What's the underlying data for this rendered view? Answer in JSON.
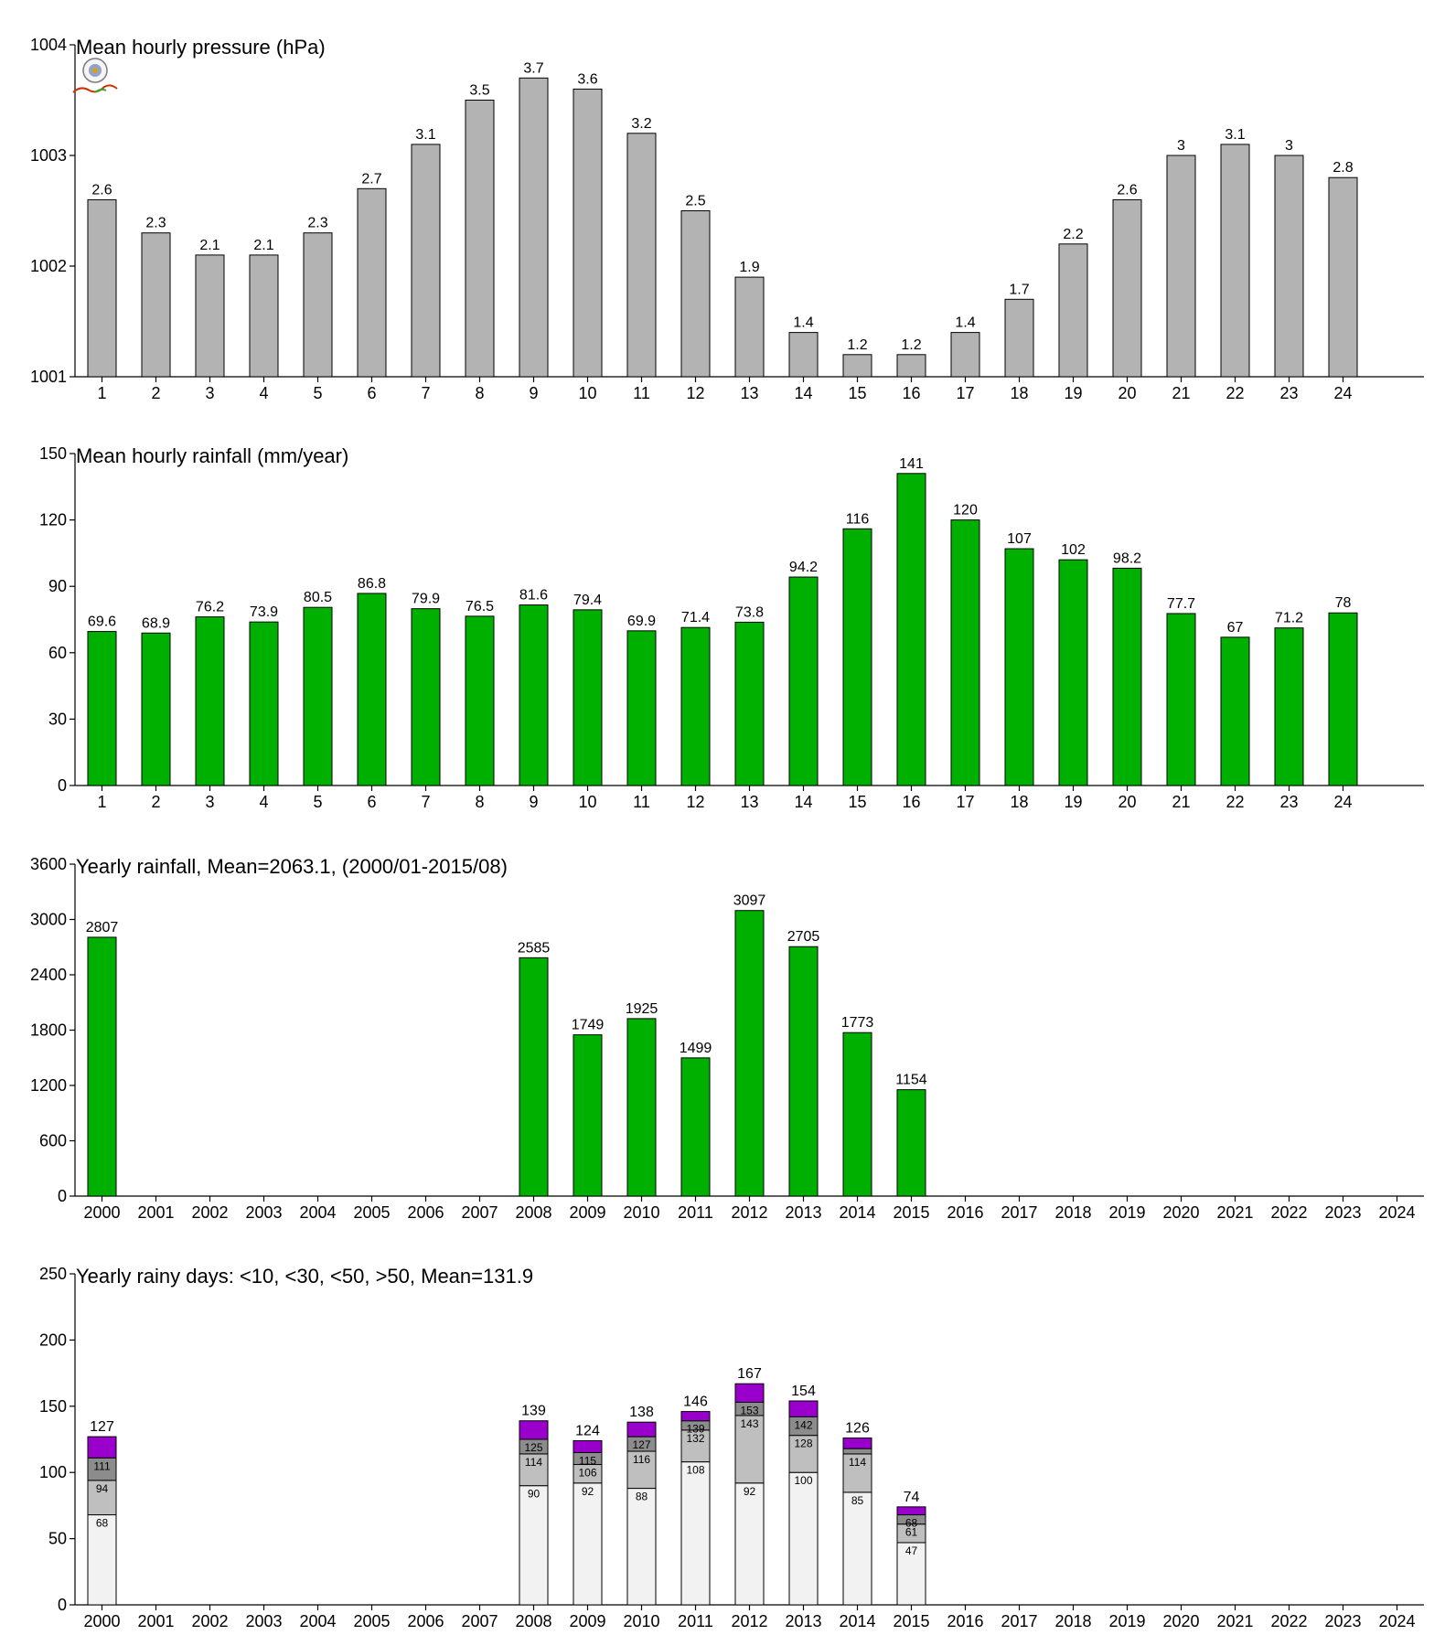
{
  "chart_data": [
    {
      "id": "pressure",
      "type": "bar",
      "title": "Mean hourly pressure (hPa)",
      "categories": [
        "1",
        "2",
        "3",
        "4",
        "5",
        "6",
        "7",
        "8",
        "9",
        "10",
        "11",
        "12",
        "13",
        "14",
        "15",
        "16",
        "17",
        "18",
        "19",
        "20",
        "21",
        "22",
        "23",
        "24"
      ],
      "values": [
        1002.6,
        1002.3,
        1002.1,
        1002.1,
        1002.3,
        1002.7,
        1003.1,
        1003.5,
        1003.7,
        1003.6,
        1003.2,
        1002.5,
        1001.9,
        1001.4,
        1001.2,
        1001.2,
        1001.4,
        1001.7,
        1002.2,
        1002.6,
        1003.0,
        1003.1,
        1003.0,
        1002.8
      ],
      "labels": [
        "2.6",
        "2.3",
        "2.1",
        "2.1",
        "2.3",
        "2.7",
        "3.1",
        "3.5",
        "3.7",
        "3.6",
        "3.2",
        "2.5",
        "1.9",
        "1.4",
        "1.2",
        "1.2",
        "1.4",
        "1.7",
        "2.2",
        "2.6",
        "3",
        "3.1",
        "3",
        "2.8"
      ],
      "ylim": [
        1001,
        1004
      ],
      "yticks": [
        1001,
        1002,
        1003,
        1004
      ],
      "color": "#b3b3b3",
      "grid": false
    },
    {
      "id": "hourly_rain",
      "type": "bar",
      "title": "Mean hourly rainfall (mm/year)",
      "categories": [
        "1",
        "2",
        "3",
        "4",
        "5",
        "6",
        "7",
        "8",
        "9",
        "10",
        "11",
        "12",
        "13",
        "14",
        "15",
        "16",
        "17",
        "18",
        "19",
        "20",
        "21",
        "22",
        "23",
        "24"
      ],
      "values": [
        69.6,
        68.9,
        76.2,
        73.9,
        80.5,
        86.8,
        79.9,
        76.5,
        81.6,
        79.4,
        69.9,
        71.4,
        73.8,
        94.2,
        116,
        141,
        120,
        107,
        102,
        98.2,
        77.7,
        67,
        71.2,
        78
      ],
      "labels": [
        "69.6",
        "68.9",
        "76.2",
        "73.9",
        "80.5",
        "86.8",
        "79.9",
        "76.5",
        "81.6",
        "79.4",
        "69.9",
        "71.4",
        "73.8",
        "94.2",
        "116",
        "141",
        "120",
        "107",
        "102",
        "98.2",
        "77.7",
        "67",
        "71.2",
        "78"
      ],
      "ylim": [
        0,
        150
      ],
      "yticks": [
        0,
        30,
        60,
        90,
        120,
        150
      ],
      "color": "#00b000",
      "grid": false
    },
    {
      "id": "yearly_rain",
      "type": "bar",
      "title": "Yearly rainfall, Mean=2063.1, (2000/01-2015/08)",
      "categories": [
        "2000",
        "2001",
        "2002",
        "2003",
        "2004",
        "2005",
        "2006",
        "2007",
        "2008",
        "2009",
        "2010",
        "2011",
        "2012",
        "2013",
        "2014",
        "2015",
        "2016",
        "2017",
        "2018",
        "2019",
        "2020",
        "2021",
        "2022",
        "2023",
        "2024"
      ],
      "values": [
        2807,
        null,
        null,
        null,
        null,
        null,
        null,
        null,
        2585,
        1749,
        1925,
        1499,
        3097,
        2705,
        1773,
        1154,
        null,
        null,
        null,
        null,
        null,
        null,
        null,
        null,
        null
      ],
      "labels": [
        "2807",
        "",
        "",
        "",
        "",
        "",
        "",
        "",
        "2585",
        "1749",
        "1925",
        "1499",
        "3097",
        "2705",
        "1773",
        "1154",
        "",
        "",
        "",
        "",
        "",
        "",
        "",
        "",
        ""
      ],
      "ylim": [
        0,
        3600
      ],
      "yticks": [
        0,
        600,
        1200,
        1800,
        2400,
        3000,
        3600
      ],
      "color": "#00b000",
      "grid": false
    },
    {
      "id": "rainy_days",
      "type": "bar",
      "stacked": true,
      "title": "Yearly rainy days: <10, <30, <50, >50, Mean=131.9",
      "categories": [
        "2000",
        "2001",
        "2002",
        "2003",
        "2004",
        "2005",
        "2006",
        "2007",
        "2008",
        "2009",
        "2010",
        "2011",
        "2012",
        "2013",
        "2014",
        "2015",
        "2016",
        "2017",
        "2018",
        "2019",
        "2020",
        "2021",
        "2022",
        "2023",
        "2024"
      ],
      "cumulative": [
        [
          68,
          94,
          111,
          127
        ],
        null,
        null,
        null,
        null,
        null,
        null,
        null,
        [
          90,
          114,
          125,
          139
        ],
        [
          92,
          106,
          115,
          124
        ],
        [
          88,
          116,
          127,
          138
        ],
        [
          108,
          132,
          139,
          146
        ],
        [
          92,
          143,
          153,
          167
        ],
        [
          100,
          128,
          142,
          154
        ],
        [
          85,
          114,
          118,
          126
        ],
        [
          47,
          61,
          68,
          74
        ],
        null,
        null,
        null,
        null,
        null,
        null,
        null,
        null,
        null
      ],
      "segment_labels": [
        [
          "68",
          "94",
          "111"
        ],
        null,
        null,
        null,
        null,
        null,
        null,
        null,
        [
          "90",
          "114",
          "125"
        ],
        [
          "92",
          "106",
          "115"
        ],
        [
          "88",
          "116",
          "127"
        ],
        [
          "108",
          "132",
          "139"
        ],
        [
          "92",
          "143",
          "153"
        ],
        [
          "100",
          "128",
          "142"
        ],
        [
          "85",
          "114",
          ""
        ],
        [
          "47",
          "61",
          "68"
        ],
        null,
        null,
        null,
        null,
        null,
        null,
        null,
        null,
        null
      ],
      "totals": [
        "127",
        "",
        "",
        "",
        "",
        "",
        "",
        "",
        "139",
        "124",
        "138",
        "146",
        "167",
        "154",
        "126",
        "74",
        "",
        "",
        "",
        "",
        "",
        "",
        "",
        "",
        ""
      ],
      "segment_colors": [
        "#f2f2f2",
        "#bfbfbf",
        "#8c8c8c",
        "#9900cc"
      ],
      "ylim": [
        0,
        250
      ],
      "yticks": [
        0,
        50,
        100,
        150,
        200,
        250
      ],
      "grid": false
    }
  ]
}
